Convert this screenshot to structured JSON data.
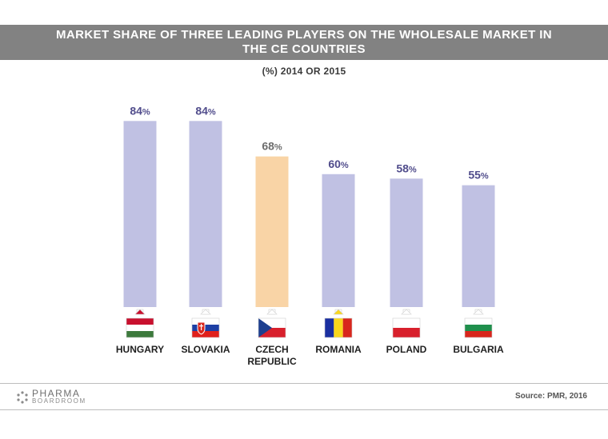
{
  "chart_data": {
    "type": "bar",
    "title_lines": [
      "MARKET SHARE OF THREE LEADING PLAYERS ON THE WHOLESALE MARKET IN",
      "THE CE COUNTRIES"
    ],
    "subtitle": "(%) 2014 OR 2015",
    "unit": "%",
    "ylim": [
      0,
      100
    ],
    "grid": false,
    "categories": [
      {
        "lines": [
          "HUNGARY"
        ],
        "flag": "hungary-flag"
      },
      {
        "lines": [
          "SLOVAKIA"
        ],
        "flag": "slovakia-flag"
      },
      {
        "lines": [
          "CZECH",
          "REPUBLIC"
        ],
        "flag": "czech-flag"
      },
      {
        "lines": [
          "ROMANIA"
        ],
        "flag": "romania-flag"
      },
      {
        "lines": [
          "POLAND"
        ],
        "flag": "poland-flag"
      },
      {
        "lines": [
          "BULGARIA"
        ],
        "flag": "bulgaria-flag"
      }
    ],
    "values": [
      84,
      84,
      68,
      60,
      58,
      55
    ],
    "labels": [
      "84",
      "84",
      "68",
      "60",
      "58",
      "55"
    ],
    "highlight_index": 2,
    "colors": {
      "bar": "#c0c1e3",
      "bar_highlight": "#f9d4a6",
      "label": "#514d8c",
      "label_highlight": "#6d6d6d"
    }
  },
  "footer": {
    "logo_main": "PHARMA",
    "logo_sub": "BOARDROOM",
    "source": "Source: PMR, 2016"
  }
}
